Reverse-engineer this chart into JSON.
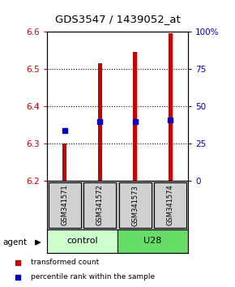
{
  "title": "GDS3547 / 1439052_at",
  "samples": [
    "GSM341571",
    "GSM341572",
    "GSM341573",
    "GSM341574"
  ],
  "bar_bottom": 6.2,
  "bar_tops": [
    6.3,
    6.515,
    6.545,
    6.595
  ],
  "percentile_values": [
    6.335,
    6.358,
    6.358,
    6.362
  ],
  "ylim_left": [
    6.2,
    6.6
  ],
  "ylim_right": [
    0,
    100
  ],
  "yticks_left_vals": [
    6.2,
    6.3,
    6.4,
    6.5,
    6.6
  ],
  "yticks_right": [
    0,
    25,
    50,
    75,
    100
  ],
  "bar_color": "#cc0000",
  "percentile_color": "#0000cc",
  "group_labels": [
    "control",
    "U28"
  ],
  "group_ranges": [
    [
      0,
      2
    ],
    [
      2,
      4
    ]
  ],
  "group_colors_light": [
    "#ccffcc",
    "#66dd66"
  ],
  "legend_items": [
    {
      "label": "transformed count",
      "color": "#cc0000"
    },
    {
      "label": "percentile rank within the sample",
      "color": "#0000cc"
    }
  ]
}
